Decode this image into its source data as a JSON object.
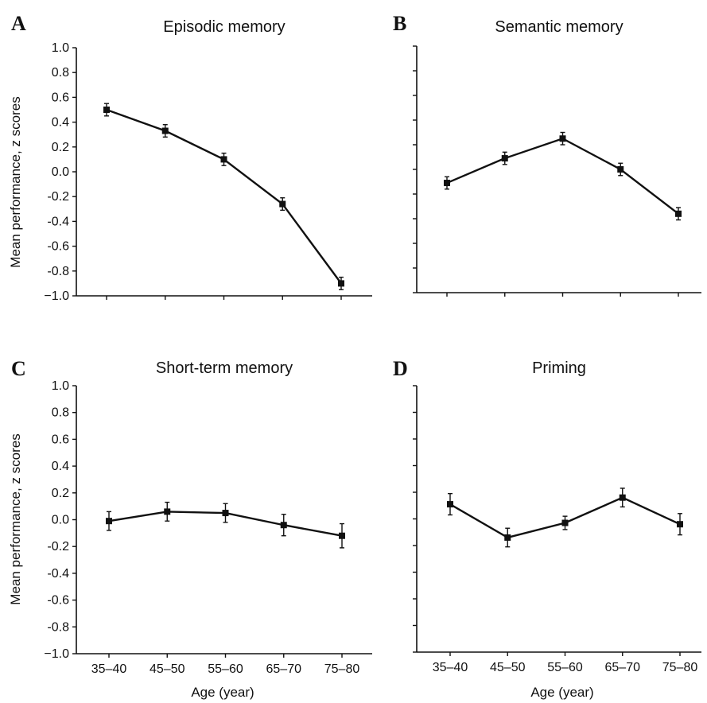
{
  "chart_data": [
    {
      "type": "line",
      "panel": "A",
      "title": "Episodic memory",
      "categories": [
        "35–40",
        "45–50",
        "55–60",
        "65–70",
        "75–80"
      ],
      "values": [
        0.5,
        0.33,
        0.1,
        -0.26,
        -0.9
      ],
      "errors": [
        0.05,
        0.05,
        0.05,
        0.05,
        0.05
      ],
      "ylim": [
        -1.0,
        1.0
      ],
      "yticks": [
        "1.0",
        "0.8",
        "0.6",
        "0.4",
        "0.2",
        "0.0",
        "-0.2",
        "-0.4",
        "-0.6",
        "-0.8",
        "−1.0"
      ],
      "ylabel": "Mean performance,  z scores",
      "xlabel": ""
    },
    {
      "type": "line",
      "panel": "B",
      "title": "Semantic memory",
      "categories": [
        "35–40",
        "45–50",
        "55–60",
        "65–70",
        "75–80"
      ],
      "values": [
        -0.11,
        0.09,
        0.25,
        0.0,
        -0.36
      ],
      "errors": [
        0.05,
        0.05,
        0.05,
        0.05,
        0.05
      ],
      "ylim": [
        -1.0,
        1.0
      ],
      "ylabel": "",
      "xlabel": ""
    },
    {
      "type": "line",
      "panel": "C",
      "title": "Short-term memory",
      "categories": [
        "35–40",
        "45–50",
        "55–60",
        "65–70",
        "75–80"
      ],
      "values": [
        -0.01,
        0.06,
        0.05,
        -0.04,
        -0.12
      ],
      "errors": [
        0.07,
        0.07,
        0.07,
        0.08,
        0.09
      ],
      "ylim": [
        -1.0,
        1.0
      ],
      "yticks": [
        "1.0",
        "0.8",
        "0.6",
        "0.4",
        "0.2",
        "0.0",
        "-0.2",
        "-0.4",
        "-0.6",
        "-0.8",
        "−1.0"
      ],
      "xticks": [
        "35–40",
        "45–50",
        "55–60",
        "65–70",
        "75–80"
      ],
      "ylabel": "Mean performance,  z scores",
      "xlabel": "Age (year)"
    },
    {
      "type": "line",
      "panel": "D",
      "title": "Priming",
      "categories": [
        "35–40",
        "45–50",
        "55–60",
        "65–70",
        "75–80"
      ],
      "values": [
        0.11,
        -0.14,
        -0.03,
        0.16,
        -0.04
      ],
      "errors": [
        0.08,
        0.07,
        0.05,
        0.07,
        0.08
      ],
      "ylim": [
        -1.0,
        1.0
      ],
      "xticks": [
        "35–40",
        "45–50",
        "55–60",
        "65–70",
        "75–80"
      ],
      "ylabel": "",
      "xlabel": "Age (year)"
    }
  ]
}
